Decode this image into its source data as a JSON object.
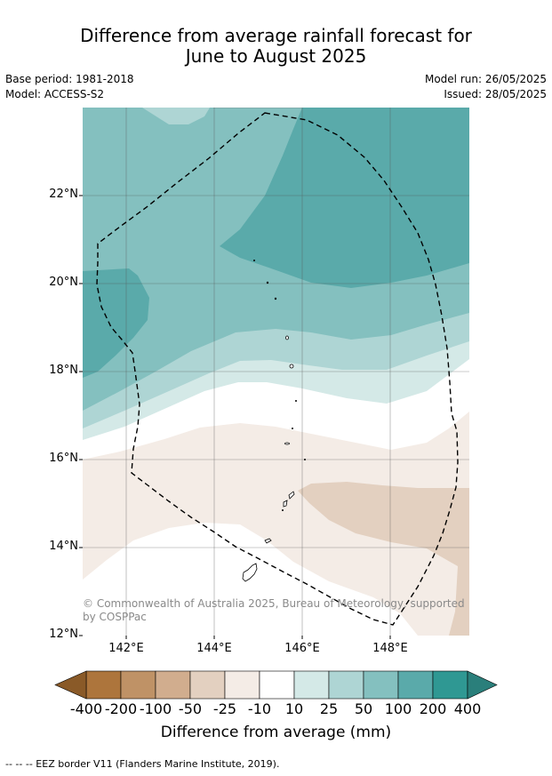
{
  "title": {
    "line1": "Difference from average rainfall forecast for",
    "line2": "June to August 2025"
  },
  "meta": {
    "base_period": "Base period: 1981-2018",
    "model": "Model: ACCESS-S2",
    "model_run": "Model run: 26/05/2025",
    "issued": "Issued: 28/05/2025"
  },
  "map": {
    "y_ticks": [
      "22°N",
      "20°N",
      "18°N",
      "16°N",
      "14°N",
      "12°N"
    ],
    "x_ticks": [
      "142°E",
      "144°E",
      "146°E",
      "148°E"
    ],
    "copyright": "© Commonwealth of Australia 2025, Bureau of Meteorology, supported by COSPPac",
    "colors": {
      "c_400": "#2f9893",
      "c_200": "#5aaaaa",
      "c_100": "#84c0bf",
      "c_50": "#aed5d4",
      "c_25": "#d4e9e7",
      "c_neutral": "#ffffff",
      "d_25": "#f4ece6",
      "d_50": "#e3d0c0",
      "d_100": "#d1ad8e",
      "d_200": "#bf9266",
      "d_400": "#ad753c"
    }
  },
  "colorbar": {
    "labels": [
      "-400",
      "-200",
      "-100",
      "-50",
      "-25",
      "-10",
      "10",
      "25",
      "50",
      "100",
      "200",
      "400"
    ],
    "colors": [
      "#ad753c",
      "#bf9266",
      "#d1ad8e",
      "#e3d0c0",
      "#f4ece6",
      "#ffffff",
      "#d4e9e7",
      "#aed5d4",
      "#84c0bf",
      "#5aaaaa",
      "#2f9893"
    ],
    "extend_low_color": "#8a5a28",
    "extend_high_color": "#2a7f7b",
    "title": "Difference from average (mm)"
  },
  "footer": "--  --  -- EEZ border V11 (Flanders Marine Institute, 2019)."
}
